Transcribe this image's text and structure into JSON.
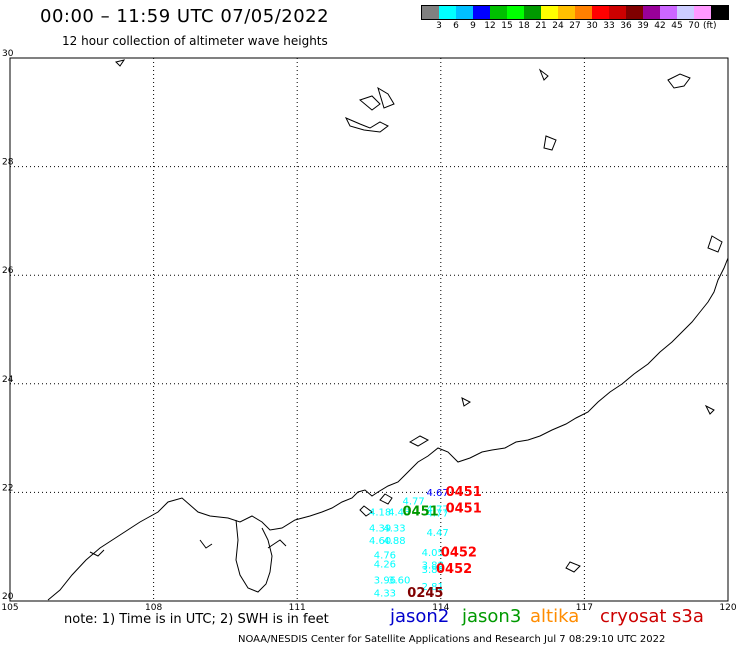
{
  "header": {
    "title": "00:00 – 11:59 UTC 07/05/2022",
    "subtitle": "12 hour collection of altimeter wave heights"
  },
  "color_scale": {
    "colors": [
      "#808080",
      "#00ffff",
      "#00bfff",
      "#0000ff",
      "#00bf00",
      "#00ff00",
      "#009900",
      "#ffff00",
      "#ffc000",
      "#ff8000",
      "#ff0000",
      "#cc0000",
      "#800000",
      "#990099",
      "#cc66ff",
      "#ccccff",
      "#ff99ff",
      "#000000"
    ],
    "labels": [
      "3",
      "6",
      "9",
      "12",
      "15",
      "18",
      "21",
      "24",
      "27",
      "30",
      "33",
      "36",
      "39",
      "42",
      "45",
      "70"
    ],
    "unit": "(ft)"
  },
  "axes": {
    "x_ticks": [
      "105",
      "108",
      "111",
      "114",
      "117",
      "120"
    ],
    "y_ticks": [
      "20",
      "22",
      "24",
      "26",
      "28",
      "30"
    ]
  },
  "observations": {
    "swh": [
      {
        "label": "4.67",
        "lon": 113.7,
        "lat": 21.93,
        "color": "#0000ff"
      },
      {
        "label": "4.77",
        "lon": 113.2,
        "lat": 21.78,
        "color": "#00ffff"
      },
      {
        "label": "4.77",
        "lon": 113.7,
        "lat": 21.63,
        "color": "#00ffff"
      },
      {
        "label": "4.77",
        "lon": 113.7,
        "lat": 21.56,
        "color": "#00ffff"
      },
      {
        "label": "4.18",
        "lon": 112.5,
        "lat": 21.57,
        "color": "#00ffff"
      },
      {
        "label": "4.43",
        "lon": 112.9,
        "lat": 21.57,
        "color": "#00ffff"
      },
      {
        "label": "4.39",
        "lon": 112.5,
        "lat": 21.28,
        "color": "#00ffff"
      },
      {
        "label": "4.33",
        "lon": 112.8,
        "lat": 21.28,
        "color": "#00ffff"
      },
      {
        "label": "4.47",
        "lon": 113.7,
        "lat": 21.2,
        "color": "#00ffff"
      },
      {
        "label": "4.60",
        "lon": 112.5,
        "lat": 21.05,
        "color": "#00ffff"
      },
      {
        "label": "4.88",
        "lon": 112.8,
        "lat": 21.05,
        "color": "#00ffff"
      },
      {
        "label": "4.05",
        "lon": 113.6,
        "lat": 20.83,
        "color": "#00ffff"
      },
      {
        "label": "4.76",
        "lon": 112.6,
        "lat": 20.78,
        "color": "#00ffff"
      },
      {
        "label": "4.26",
        "lon": 112.6,
        "lat": 20.62,
        "color": "#00ffff"
      },
      {
        "label": "3.88",
        "lon": 113.6,
        "lat": 20.6,
        "color": "#00ffff"
      },
      {
        "label": "3.86",
        "lon": 113.6,
        "lat": 20.52,
        "color": "#00ffff"
      },
      {
        "label": "3.96",
        "lon": 112.6,
        "lat": 20.32,
        "color": "#00ffff"
      },
      {
        "label": "3.60",
        "lon": 112.9,
        "lat": 20.32,
        "color": "#00ffff"
      },
      {
        "label": "2.81",
        "lon": 113.6,
        "lat": 20.2,
        "color": "#00ffff"
      },
      {
        "label": "4.33",
        "lon": 112.6,
        "lat": 20.08,
        "color": "#00ffff"
      }
    ],
    "passes": [
      {
        "label": "0451",
        "lon": 114.1,
        "lat": 21.93,
        "color": "#ff0000"
      },
      {
        "label": "0451",
        "lon": 114.1,
        "lat": 21.63,
        "color": "#ff0000"
      },
      {
        "label": "0451",
        "lon": 113.2,
        "lat": 21.57,
        "color": "#009900"
      },
      {
        "label": "0452",
        "lon": 114.0,
        "lat": 20.82,
        "color": "#ff0000"
      },
      {
        "label": "0452",
        "lon": 113.9,
        "lat": 20.52,
        "color": "#ff0000"
      },
      {
        "label": "0245",
        "lon": 113.3,
        "lat": 20.07,
        "color": "#800000"
      }
    ]
  },
  "footer": {
    "note": "note:  1) Time is in UTC;  2) SWH is in feet",
    "missions": [
      {
        "name": "jason2",
        "color": "#0000cc"
      },
      {
        "name": "jason3",
        "color": "#009900"
      },
      {
        "name": "altika",
        "color": "#ff8c00"
      },
      {
        "name": "cryosat",
        "color": "#cc0000"
      },
      {
        "name": "s3a",
        "color": "#cc0000"
      }
    ],
    "credit": "NOAA/NESDIS Center for Satellite Applications and Research    Jul  7 08:29:10 UTC 2022"
  }
}
